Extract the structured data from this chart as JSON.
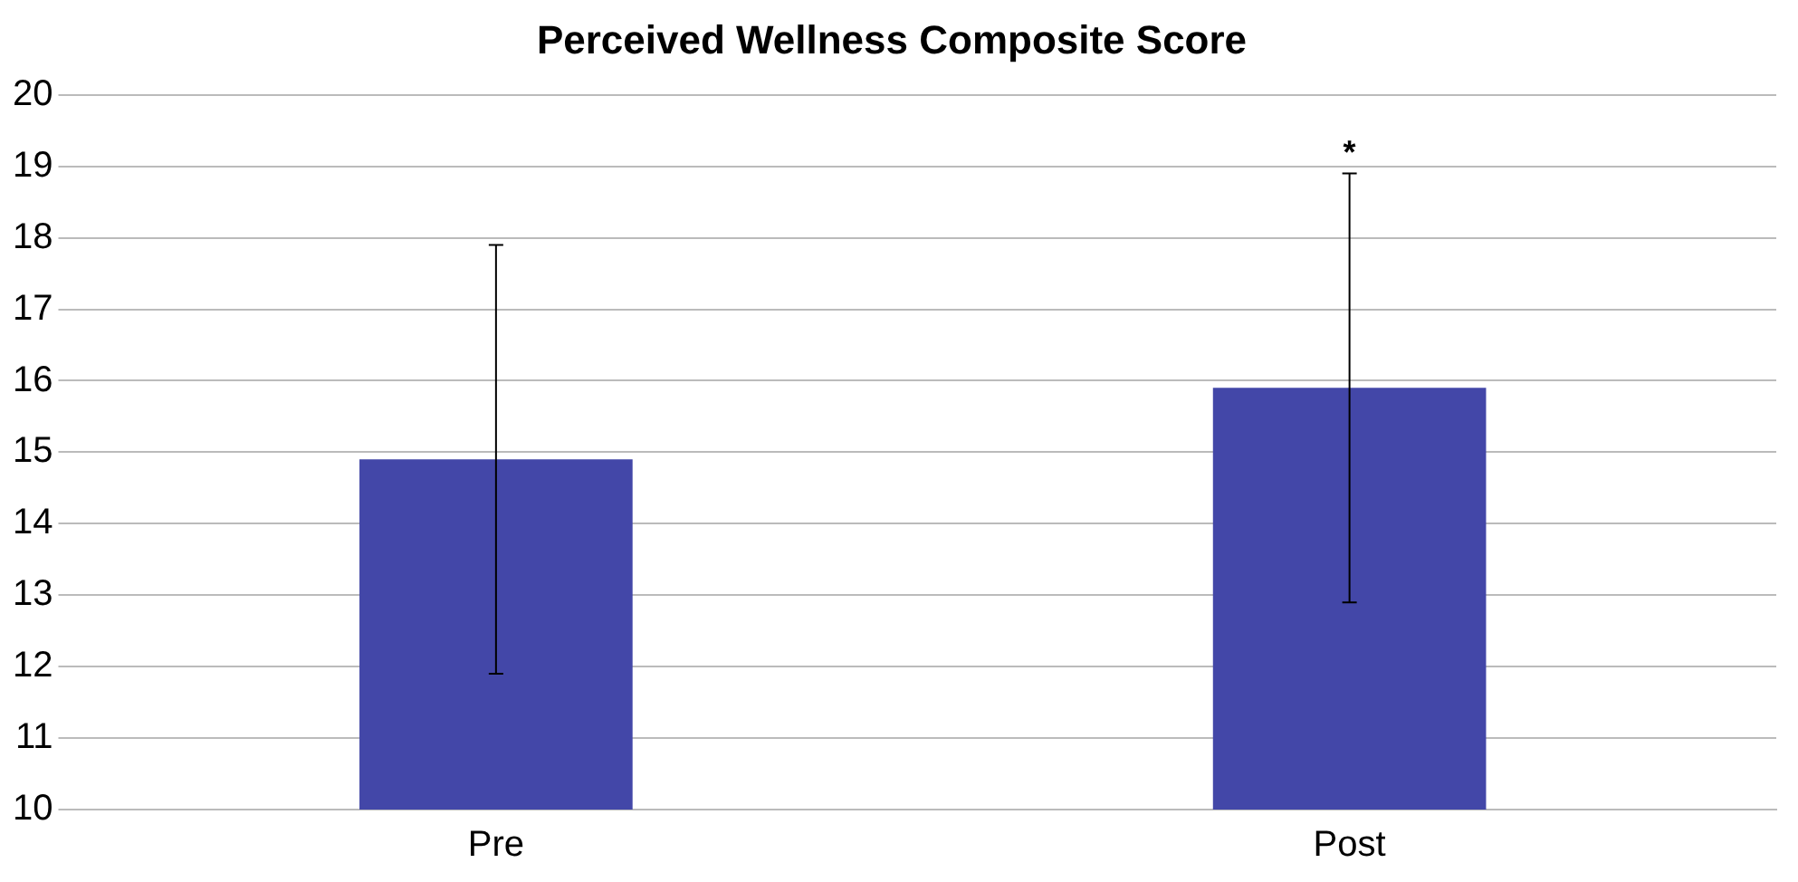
{
  "chart_data": {
    "type": "bar",
    "title": "Perceived Wellness Composite Score",
    "categories": [
      "Pre",
      "Post"
    ],
    "values": [
      14.9,
      15.9
    ],
    "errors": [
      3,
      3
    ],
    "color": "#4347a8",
    "ylim": [
      10,
      20
    ],
    "yticks": [
      10,
      11,
      12,
      13,
      14,
      15,
      16,
      17,
      18,
      19,
      20
    ],
    "grid": "y",
    "legend": false,
    "annotations": [
      {
        "text": "*",
        "x": "Post",
        "y": 18.9
      }
    ]
  }
}
